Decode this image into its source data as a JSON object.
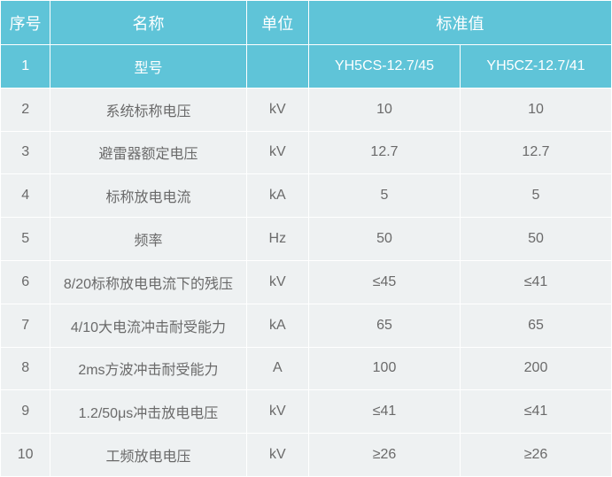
{
  "colors": {
    "header_bg": "#5fc4d8",
    "header_text": "#ffffff",
    "data_bg": "#eef1f2",
    "data_text": "#6a6a6a",
    "border": "#ffffff"
  },
  "typography": {
    "header_fontsize": 18,
    "cell_fontsize": 16,
    "font_family": "Arial, Microsoft YaHei, sans-serif"
  },
  "header": {
    "seq": "序号",
    "name": "名称",
    "unit": "单位",
    "std_value": "标准值"
  },
  "model_row": {
    "seq": "1",
    "name": "型号",
    "unit": "",
    "val1": "YH5CS-12.7/45",
    "val2": "YH5CZ-12.7/41"
  },
  "rows": [
    {
      "seq": "2",
      "name": "系统标称电压",
      "unit": "kV",
      "val1": "10",
      "val2": "10"
    },
    {
      "seq": "3",
      "name": "避雷器额定电压",
      "unit": "kV",
      "val1": "12.7",
      "val2": "12.7"
    },
    {
      "seq": "4",
      "name": "标称放电电流",
      "unit": "kA",
      "val1": "5",
      "val2": "5"
    },
    {
      "seq": "5",
      "name": "频率",
      "unit": "Hz",
      "val1": "50",
      "val2": "50"
    },
    {
      "seq": "6",
      "name": "8/20标称放电电流下的残压",
      "unit": "kV",
      "val1": "≤45",
      "val2": "≤41"
    },
    {
      "seq": "7",
      "name": "4/10大电流冲击耐受能力",
      "unit": "kA",
      "val1": "65",
      "val2": "65"
    },
    {
      "seq": "8",
      "name": "2ms方波冲击耐受能力",
      "unit": "A",
      "val1": "100",
      "val2": "200"
    },
    {
      "seq": "9",
      "name": "1.2/50μs冲击放电电压",
      "unit": "kV",
      "val1": "≤41",
      "val2": "≤41"
    },
    {
      "seq": "10",
      "name": "工频放电电压",
      "unit": "kV",
      "val1": "≥26",
      "val2": "≥26"
    }
  ]
}
